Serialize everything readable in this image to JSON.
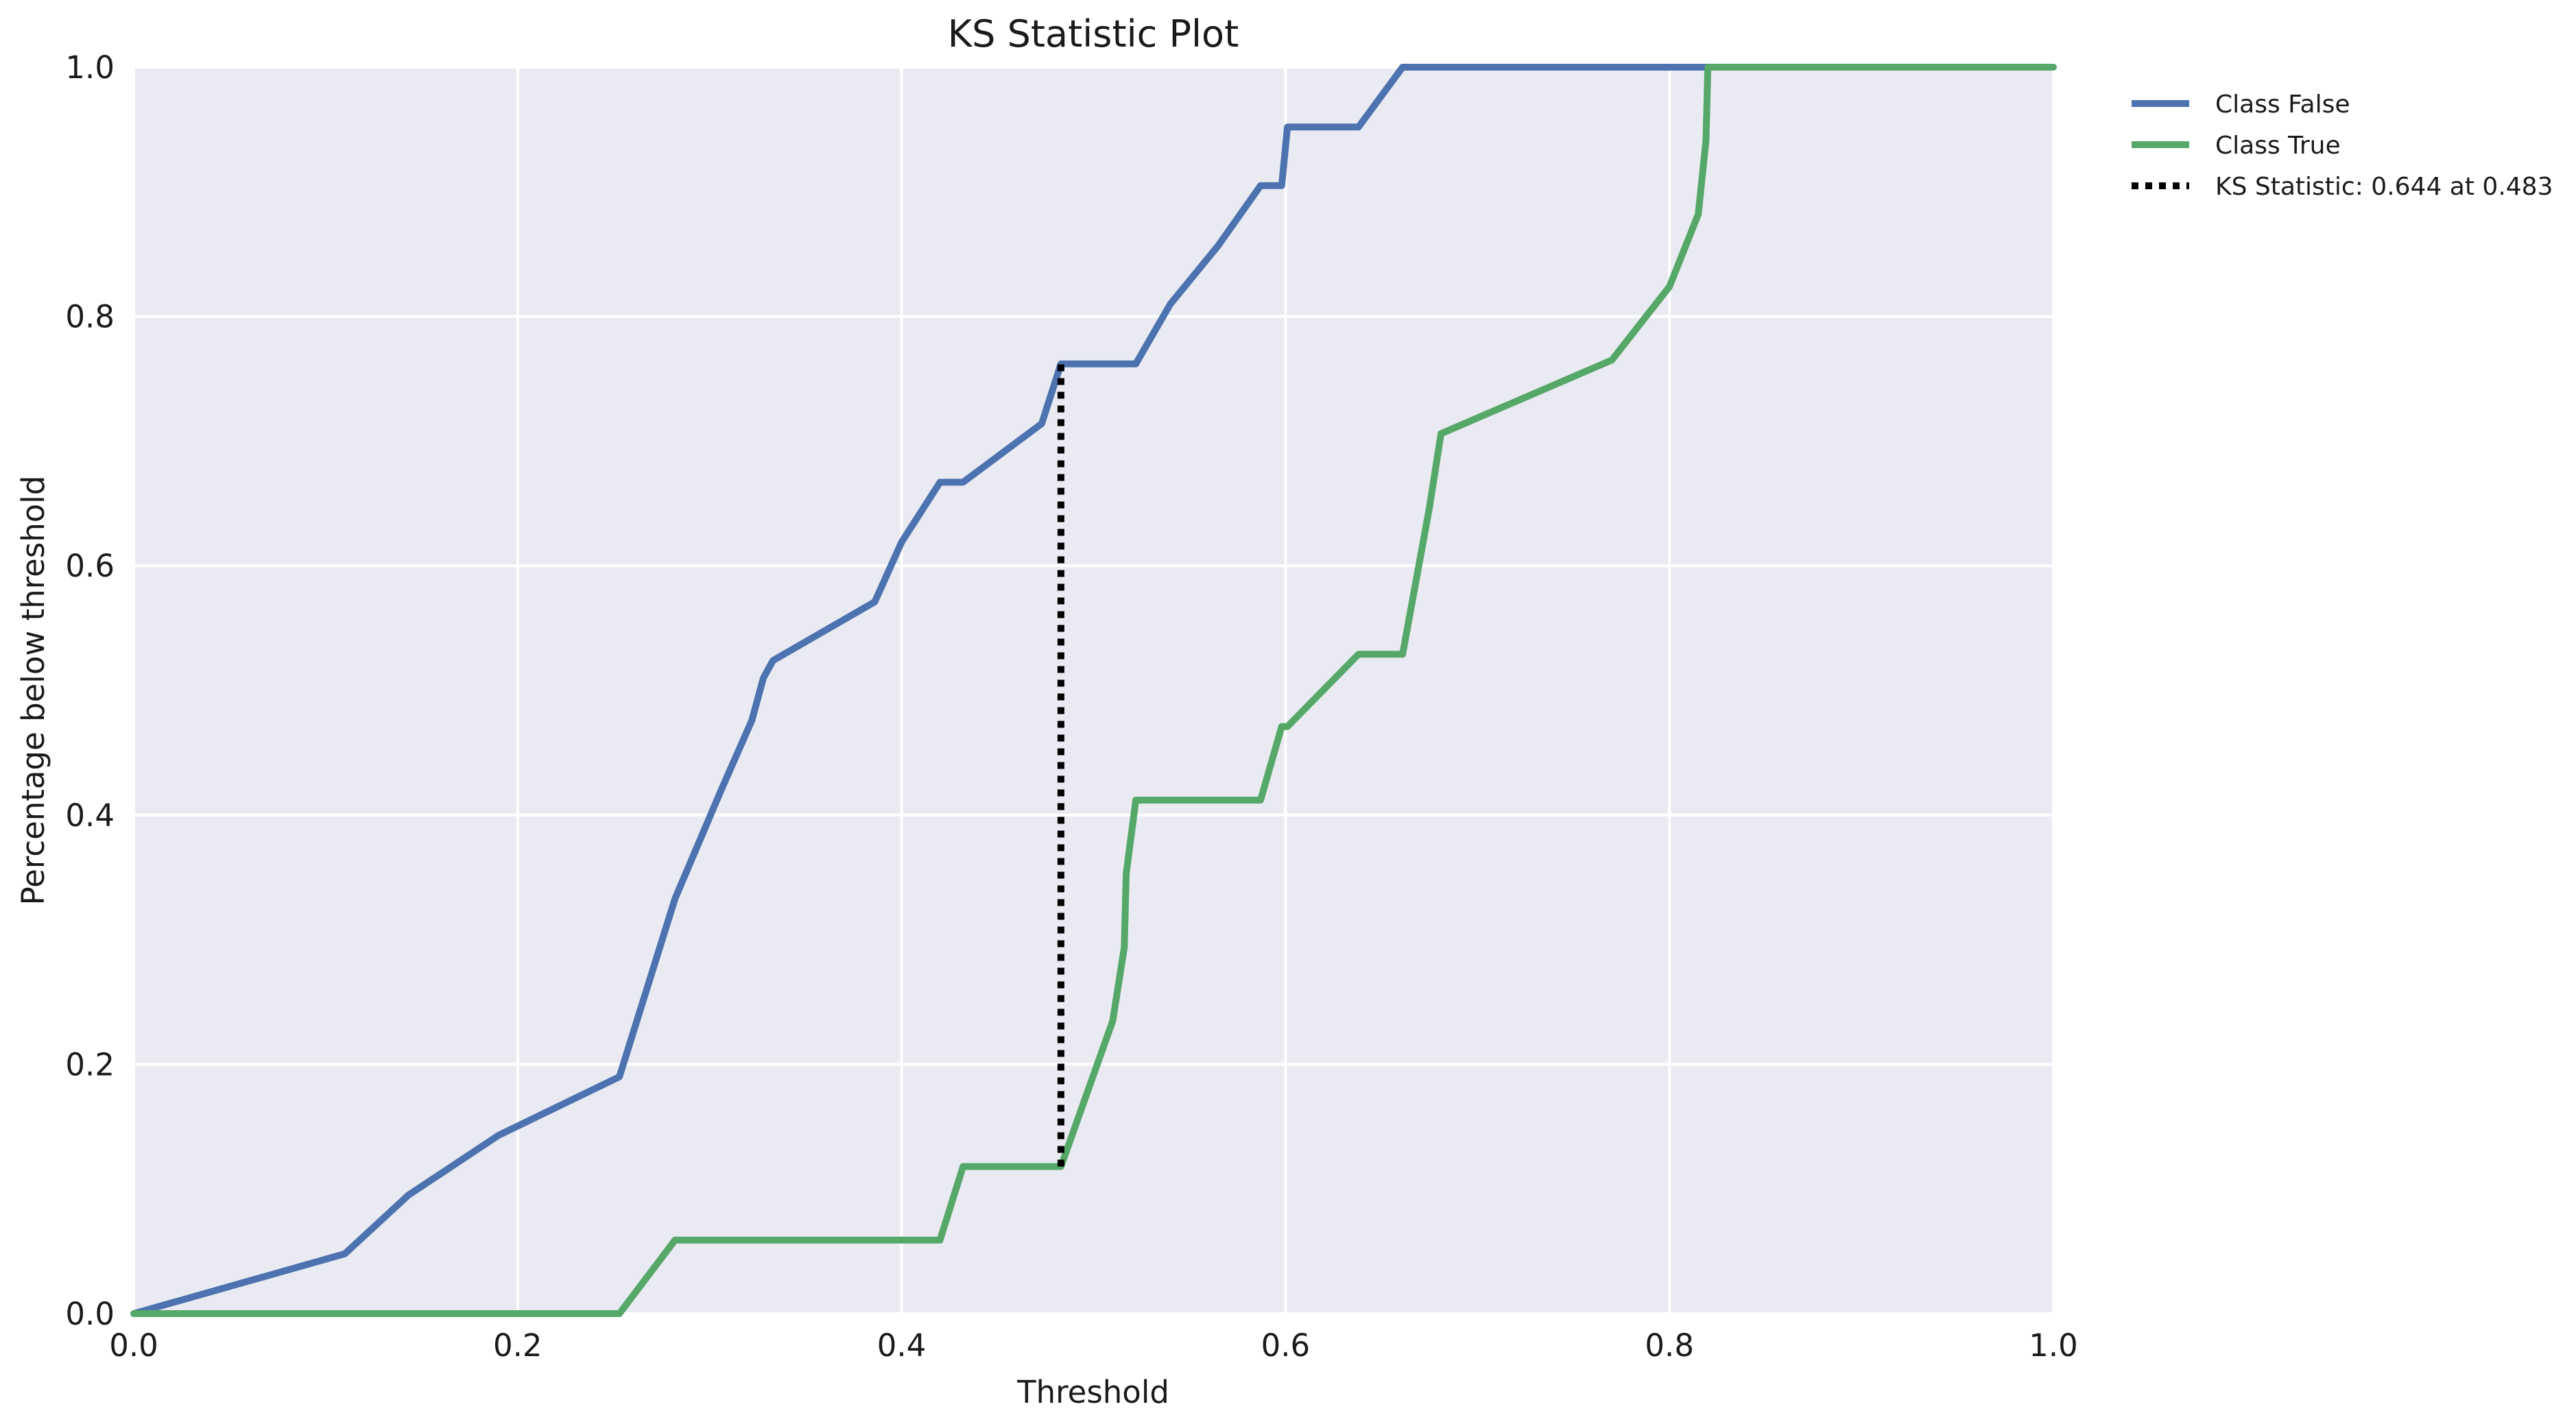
{
  "chart_data": {
    "type": "line",
    "title": "KS Statistic Plot",
    "xlabel": "Threshold",
    "ylabel": "Percentage below threshold",
    "xlim": [
      0.0,
      1.0
    ],
    "ylim": [
      0.0,
      1.0
    ],
    "xticks": [
      "0.0",
      "0.2",
      "0.4",
      "0.6",
      "0.8",
      "1.0"
    ],
    "yticks": [
      "0.0",
      "0.2",
      "0.4",
      "0.6",
      "0.8",
      "1.0"
    ],
    "grid": true,
    "background": "#eaeaf2",
    "legend_position": "outside-top-right",
    "series": [
      {
        "name": "Class False",
        "color": "#4c72b0",
        "style": "solid",
        "x": [
          0.0,
          0.11,
          0.143,
          0.19,
          0.253,
          0.282,
          0.306,
          0.322,
          0.328,
          0.333,
          0.386,
          0.4,
          0.42,
          0.432,
          0.473,
          0.483,
          0.522,
          0.54,
          0.565,
          0.587,
          0.598,
          0.601,
          0.638,
          0.661,
          0.8,
          1.0
        ],
        "y": [
          0.0,
          0.048,
          0.095,
          0.143,
          0.19,
          0.333,
          0.42,
          0.476,
          0.51,
          0.524,
          0.571,
          0.619,
          0.667,
          0.667,
          0.714,
          0.762,
          0.762,
          0.81,
          0.857,
          0.905,
          0.905,
          0.952,
          0.952,
          1.0,
          1.0,
          1.0
        ]
      },
      {
        "name": "Class True",
        "color": "#55a868",
        "style": "solid",
        "x": [
          0.0,
          0.253,
          0.282,
          0.42,
          0.432,
          0.483,
          0.51,
          0.516,
          0.517,
          0.522,
          0.587,
          0.598,
          0.601,
          0.638,
          0.661,
          0.675,
          0.681,
          0.77,
          0.8,
          0.815,
          0.819,
          0.82,
          1.0
        ],
        "y": [
          0.0,
          0.0,
          0.059,
          0.059,
          0.118,
          0.118,
          0.235,
          0.294,
          0.353,
          0.412,
          0.412,
          0.471,
          0.471,
          0.529,
          0.529,
          0.647,
          0.706,
          0.765,
          0.824,
          0.882,
          0.941,
          1.0,
          1.0
        ]
      },
      {
        "name": "KS Statistic: 0.644 at 0.483",
        "color": "#000000",
        "style": "dotted",
        "x": [
          0.483,
          0.483
        ],
        "y": [
          0.118,
          0.762
        ]
      }
    ]
  }
}
